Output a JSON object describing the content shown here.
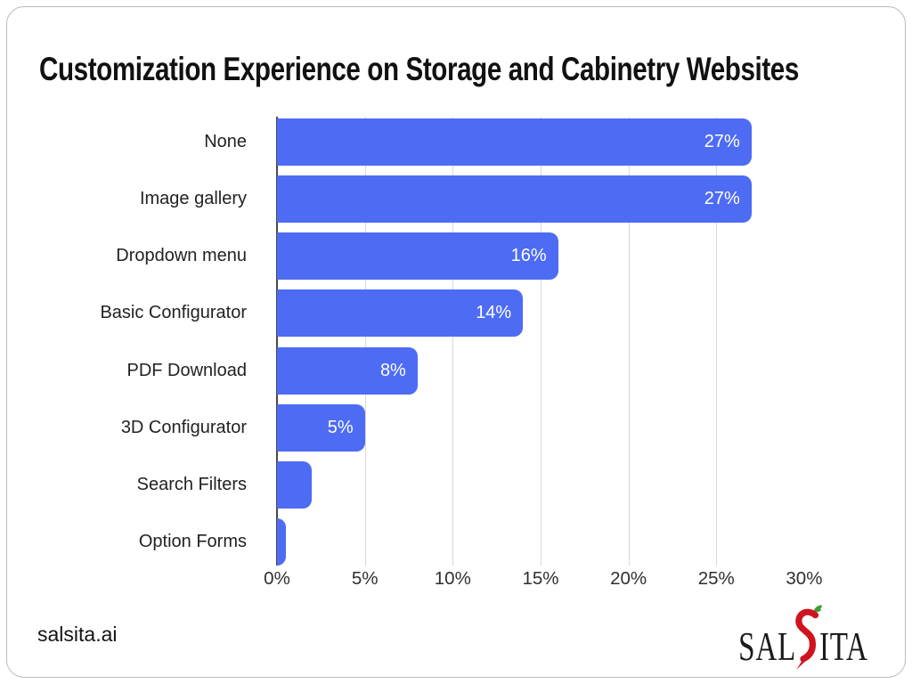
{
  "page": {
    "title": "Customization Experience on Storage and Cabinetry Websites"
  },
  "chart_data": {
    "type": "bar",
    "orientation": "horizontal",
    "title": "Customization Experience on Storage and Cabinetry Websites",
    "categories": [
      "None",
      "Image gallery",
      "Dropdown menu",
      "Basic Configurator",
      "PDF Download",
      "3D Configurator",
      "Search Filters",
      "Option Forms"
    ],
    "values": [
      27,
      27,
      16,
      14,
      8,
      5,
      2,
      0.5
    ],
    "bar_labels": [
      "27%",
      "27%",
      "16%",
      "14%",
      "8%",
      "5%",
      "",
      ""
    ],
    "xlabel": "",
    "ylabel": "",
    "x_ticks": [
      "0%",
      "5%",
      "10%",
      "15%",
      "20%",
      "25%",
      "30%"
    ],
    "x_tick_values": [
      0,
      5,
      10,
      15,
      20,
      25,
      30
    ],
    "gridline_values": [
      5,
      10,
      15,
      20,
      25
    ],
    "xlim": [
      0,
      33.45
    ],
    "grid": "vertical-only",
    "legend": "none",
    "bar_color": "#4e6bf4",
    "bar_label_color": "#ffffff",
    "gridline_color": "#d9d9d9",
    "axis_line_color": "#4a4a4a"
  },
  "footer": {
    "website": "salsita.ai",
    "logo": {
      "left": "SAL",
      "right": "ITA",
      "pepper_icon": "chili-pepper-s-icon",
      "pepper_red": "#cf1420",
      "stem_green": "#3f9e2f"
    }
  }
}
